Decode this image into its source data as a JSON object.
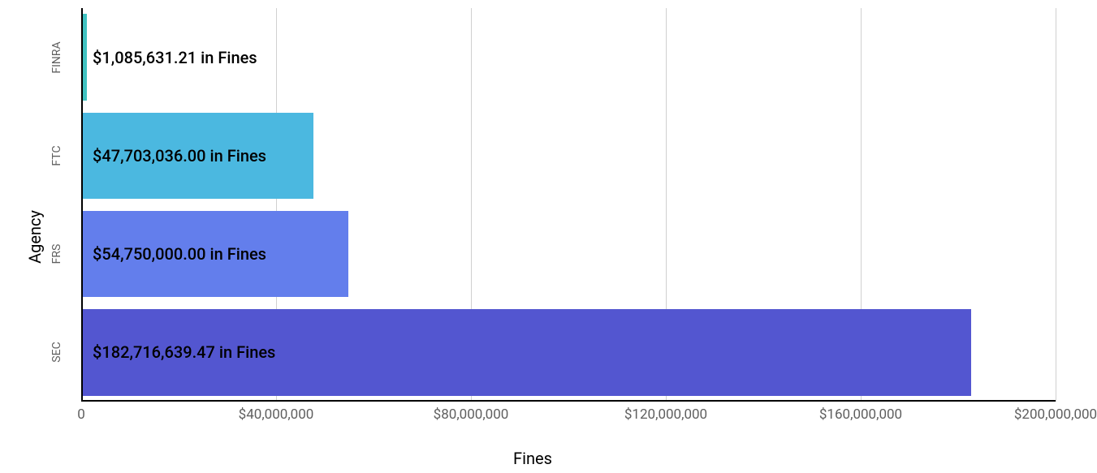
{
  "chart": {
    "type": "bar-horizontal",
    "x_axis_title": "Fines",
    "y_axis_title": "Agency",
    "background_color": "#ffffff",
    "grid_color": "#d0d0d0",
    "axis_line_color": "#000000",
    "label_color": "#5f5f5f",
    "bar_label_color": "#000000",
    "title_fontsize": 20,
    "tick_fontsize": 17,
    "category_fontsize": 14,
    "bar_label_fontsize": 20,
    "xmin": 0,
    "xmax": 200000000,
    "x_ticks": [
      {
        "value": 0,
        "label": "0"
      },
      {
        "value": 40000000,
        "label": "$40,000,000"
      },
      {
        "value": 80000000,
        "label": "$80,000,000"
      },
      {
        "value": 120000000,
        "label": "$120,000,000"
      },
      {
        "value": 160000000,
        "label": "$160,000,000"
      },
      {
        "value": 200000000,
        "label": "$200,000,000"
      }
    ],
    "bars": [
      {
        "category": "FINRA",
        "value": 1085631.21,
        "label": "$1,085,631.21 in Fines",
        "color": "#41c3c2"
      },
      {
        "category": "FTC",
        "value": 47703036.0,
        "label": "$47,703,036.00 in Fines",
        "color": "#4bb8e0"
      },
      {
        "category": "FRS",
        "value": 54750000.0,
        "label": "$54,750,000.00 in Fines",
        "color": "#637eec"
      },
      {
        "category": "SEC",
        "value": 182716639.47,
        "label": "$182,716,639.47 in Fines",
        "color": "#5356d0"
      }
    ]
  }
}
